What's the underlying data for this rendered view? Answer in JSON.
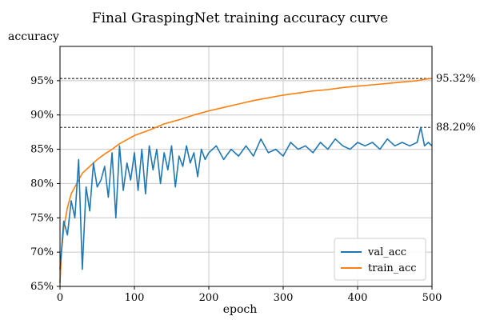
{
  "chart_data": {
    "type": "line",
    "title": "Final GraspingNet training accuracy curve",
    "xlabel": "epoch",
    "ylabel": "accuracy",
    "xlim": [
      0,
      500
    ],
    "ylim": [
      65,
      100
    ],
    "x_ticks": [
      0,
      100,
      200,
      300,
      400,
      500
    ],
    "x_tick_labels": [
      "0",
      "100",
      "200",
      "300",
      "400",
      "500"
    ],
    "y_ticks": [
      65,
      70,
      75,
      80,
      85,
      90,
      95
    ],
    "y_tick_labels": [
      "65%",
      "70%",
      "75%",
      "80%",
      "85%",
      "90%",
      "95%"
    ],
    "grid": true,
    "legend_position": "lower-right",
    "series": [
      {
        "name": "val_acc",
        "color": "#1f77b4",
        "x": [
          0,
          5,
          10,
          15,
          20,
          25,
          30,
          35,
          40,
          45,
          50,
          55,
          60,
          65,
          70,
          75,
          80,
          85,
          90,
          95,
          100,
          105,
          110,
          115,
          120,
          125,
          130,
          135,
          140,
          145,
          150,
          155,
          160,
          165,
          170,
          175,
          180,
          185,
          190,
          195,
          200,
          210,
          220,
          230,
          240,
          250,
          260,
          270,
          280,
          290,
          300,
          310,
          320,
          330,
          340,
          350,
          360,
          370,
          380,
          390,
          400,
          410,
          420,
          430,
          440,
          450,
          460,
          470,
          480,
          485,
          490,
          495,
          500
        ],
        "values": [
          67.5,
          74.5,
          72.5,
          77.5,
          75.0,
          83.5,
          67.5,
          79.5,
          76.0,
          83.0,
          79.5,
          80.5,
          82.5,
          78.0,
          84.5,
          75.0,
          85.5,
          79.0,
          83.0,
          80.5,
          84.5,
          79.0,
          85.0,
          78.5,
          85.5,
          82.0,
          85.0,
          80.0,
          84.5,
          82.0,
          85.5,
          79.5,
          84.0,
          82.5,
          85.5,
          83.0,
          84.5,
          81.0,
          85.0,
          83.5,
          84.5,
          85.5,
          83.5,
          85.0,
          84.0,
          85.5,
          84.0,
          86.5,
          84.5,
          85.0,
          84.0,
          86.0,
          85.0,
          85.5,
          84.5,
          86.0,
          85.0,
          86.5,
          85.5,
          85.0,
          86.0,
          85.5,
          86.0,
          85.0,
          86.5,
          85.5,
          86.0,
          85.5,
          86.0,
          88.2,
          85.5,
          86.0,
          85.5
        ]
      },
      {
        "name": "train_acc",
        "color": "#ff7f0e",
        "x": [
          0,
          2,
          5,
          10,
          15,
          20,
          25,
          30,
          40,
          50,
          60,
          70,
          80,
          90,
          100,
          120,
          140,
          160,
          180,
          200,
          220,
          240,
          260,
          280,
          300,
          320,
          340,
          360,
          380,
          400,
          420,
          440,
          460,
          480,
          490,
          500
        ],
        "values": [
          65.5,
          70.0,
          73.5,
          76.5,
          78.5,
          79.5,
          80.5,
          81.5,
          82.5,
          83.5,
          84.3,
          85.0,
          85.8,
          86.4,
          87.0,
          87.8,
          88.7,
          89.3,
          90.0,
          90.6,
          91.1,
          91.6,
          92.1,
          92.5,
          92.9,
          93.2,
          93.5,
          93.7,
          94.0,
          94.2,
          94.4,
          94.6,
          94.8,
          95.0,
          95.2,
          95.32
        ]
      }
    ],
    "reference_lines": [
      {
        "value": 95.32,
        "label": "95.32%"
      },
      {
        "value": 88.2,
        "label": "88.20%"
      }
    ]
  }
}
